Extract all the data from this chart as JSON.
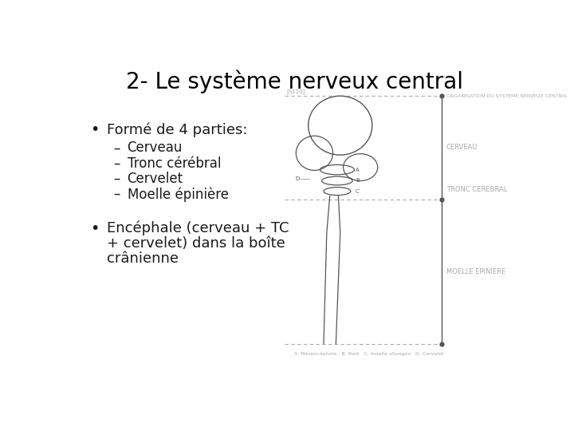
{
  "title": "2- Le système nerveux central",
  "background_color": "#ffffff",
  "title_fontsize": 20,
  "title_color": "#000000",
  "bullet1": "Formé de 4 parties:",
  "sub_items": [
    "Cerveau",
    "Tronc cérébral",
    "Cervelet",
    "Moelle épinière"
  ],
  "bullet2_line1": "Encéphale (cerveau + TC",
  "bullet2_line2": "+ cervelet) dans la boîte",
  "bullet2_line3": "crânienne",
  "text_fontsize": 13,
  "sub_fontsize": 12,
  "text_color": "#1a1a1a",
  "diagram_gray": "#888888",
  "diagram_dark": "#555555",
  "diagram_light": "#aaaaaa"
}
